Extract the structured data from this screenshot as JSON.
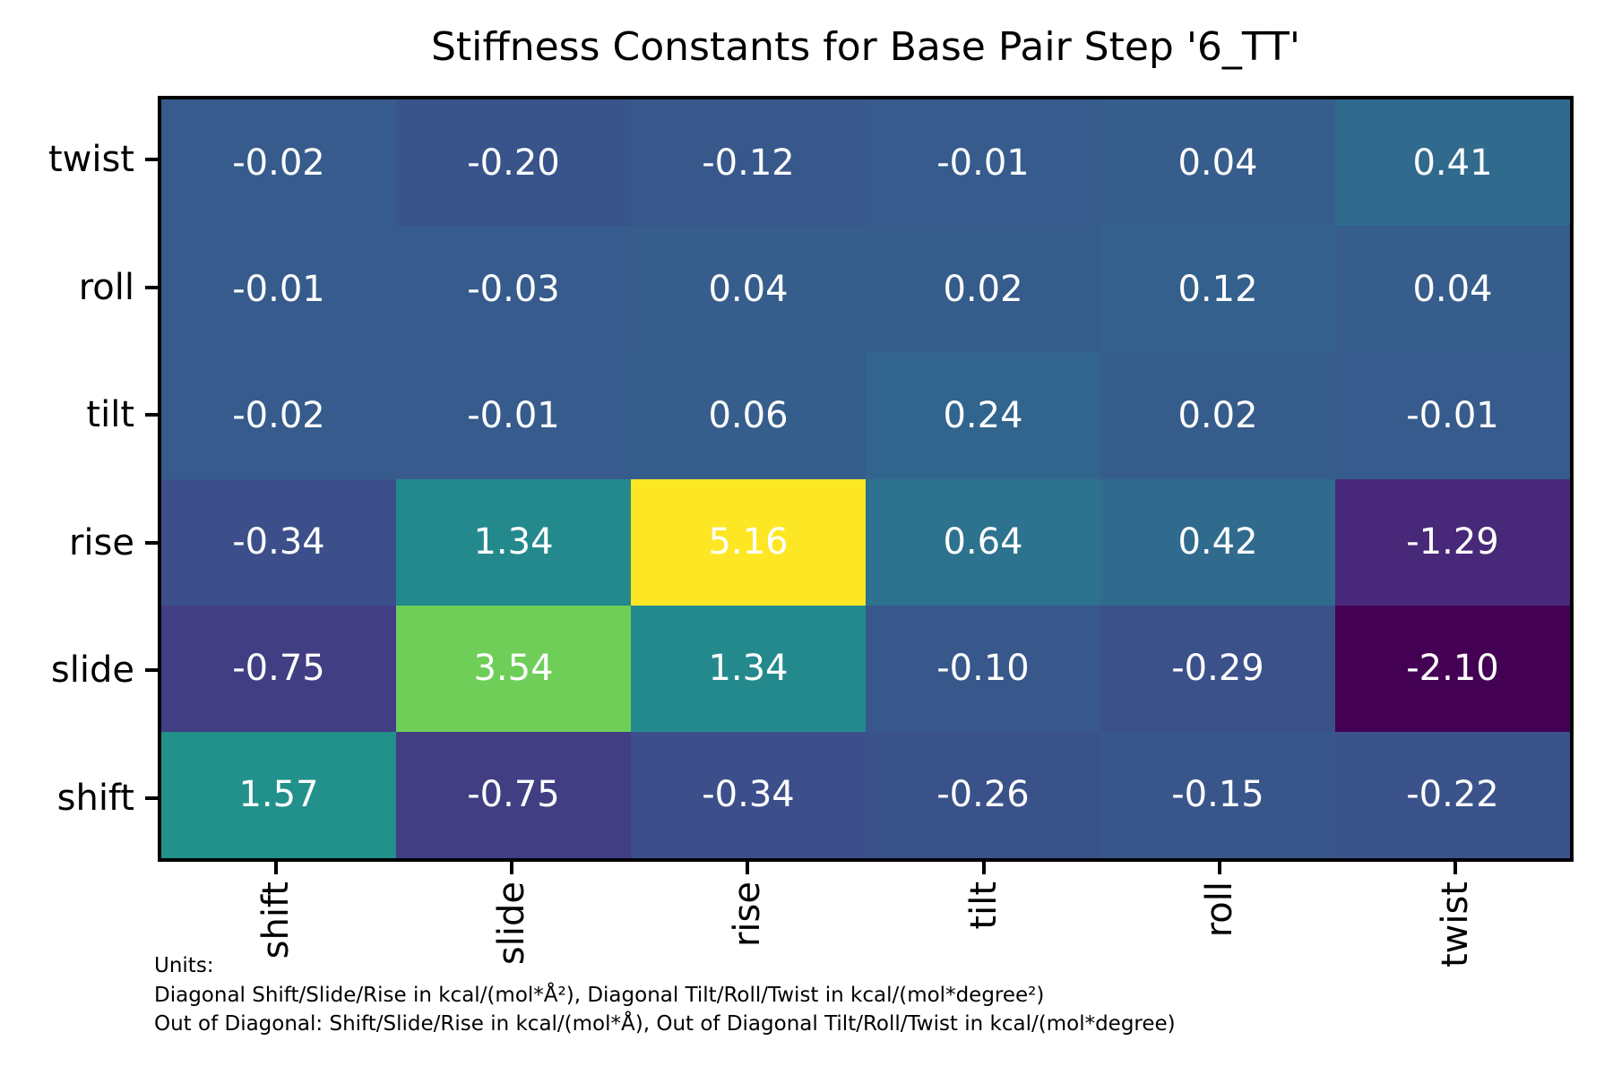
{
  "title": "Stiffness Constants for Base Pair Step '6_TT'",
  "chart_data": {
    "type": "heatmap",
    "title": "Stiffness Constants for Base Pair Step '6_TT'",
    "rows": [
      "twist",
      "roll",
      "tilt",
      "rise",
      "slide",
      "shift"
    ],
    "columns": [
      "shift",
      "slide",
      "rise",
      "tilt",
      "roll",
      "twist"
    ],
    "values": [
      [
        -0.02,
        -0.2,
        -0.12,
        -0.01,
        0.04,
        0.41
      ],
      [
        -0.01,
        -0.03,
        0.04,
        0.02,
        0.12,
        0.04
      ],
      [
        -0.02,
        -0.01,
        0.06,
        0.24,
        0.02,
        -0.01
      ],
      [
        -0.34,
        1.34,
        5.16,
        0.64,
        0.42,
        -1.29
      ],
      [
        -0.75,
        3.54,
        1.34,
        -0.1,
        -0.29,
        -2.1
      ],
      [
        1.57,
        -0.75,
        -0.34,
        -0.26,
        -0.15,
        -0.22
      ]
    ],
    "value_decimals": 2,
    "vmin": -2.1,
    "vmax": 5.16,
    "colormap": "viridis",
    "colormap_stops": [
      "#440154",
      "#482878",
      "#3e4989",
      "#31688e",
      "#26828e",
      "#1f9e89",
      "#35b779",
      "#6ece58",
      "#b5de2b",
      "#fde725"
    ],
    "grid": false,
    "legend": "none",
    "annotation_text_color": "#ffffff"
  },
  "footer": {
    "units_label": "Units:",
    "diagonal_line": "Diagonal Shift/Slide/Rise in kcal/(mol*Å²), Diagonal Tilt/Roll/Twist in kcal/(mol*degree²)",
    "off_diagonal_line": "Out of Diagonal: Shift/Slide/Rise in kcal/(mol*Å), Out of Diagonal Tilt/Roll/Twist in kcal/(mol*degree)"
  },
  "colors": {
    "background": "#ffffff",
    "axis": "#000000",
    "title_text": "#000000",
    "cell_text": "#ffffff"
  }
}
